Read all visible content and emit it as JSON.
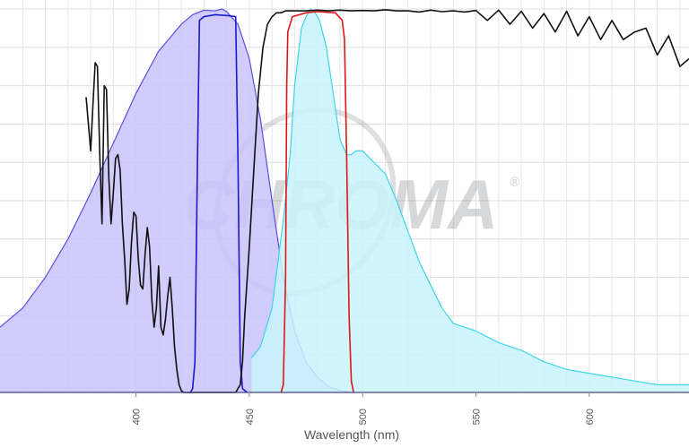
{
  "chart_data": {
    "type": "area",
    "xlabel": "Wavelength (nm)",
    "ylabel": "",
    "xlim": [
      340,
      644
    ],
    "ylim": [
      0,
      100
    ],
    "x_ticks": [
      400,
      450,
      500,
      550,
      600
    ],
    "x_tick_labels": [
      "400",
      "450",
      "500",
      "550",
      "600"
    ],
    "grid": true,
    "watermark": "CHROMA",
    "watermark_mark": "®",
    "series": [
      {
        "kind": "excitation-area",
        "color": "#5a4fe0",
        "fill": "#c9c3fb",
        "x": [
          340,
          350,
          360,
          370,
          380,
          390,
          400,
          410,
          420,
          425,
          430,
          435,
          438,
          440,
          445,
          450,
          455,
          460,
          465,
          470,
          475,
          480,
          485,
          490,
          495
        ],
        "y": [
          17,
          22,
          30,
          40,
          52,
          65,
          78,
          89,
          96,
          98.5,
          99.7,
          99.5,
          100,
          99.3,
          96,
          87,
          71,
          50,
          30,
          16,
          8,
          4,
          1.5,
          0.5,
          0
        ]
      },
      {
        "kind": "emission-area",
        "color": "#3fd4ec",
        "fill": "#c8f3fb",
        "x": [
          451,
          455,
          460,
          465,
          468,
          470,
          473,
          475,
          477,
          479,
          481,
          484,
          487,
          490,
          493,
          495,
          497,
          500,
          505,
          510,
          515,
          520,
          525,
          530,
          535,
          540,
          545,
          550,
          560,
          570,
          580,
          590,
          600,
          610,
          620,
          630,
          644
        ],
        "y": [
          9,
          12,
          22,
          45,
          62,
          80,
          95,
          98,
          100,
          99,
          97,
          90,
          78,
          66,
          62,
          62,
          63,
          63,
          60,
          57,
          50,
          42,
          34,
          28,
          22,
          18,
          17,
          16,
          13,
          11,
          8,
          6,
          5,
          4,
          3,
          2,
          2
        ]
      },
      {
        "kind": "excitation-filter",
        "color": "#1a1acc",
        "x": [
          424,
          425,
          426,
          427,
          428,
          430,
          435,
          440,
          444,
          445,
          446,
          447,
          449
        ],
        "y": [
          0,
          1,
          8,
          55,
          97,
          98,
          98.5,
          98.3,
          98,
          60,
          8,
          1,
          0
        ]
      },
      {
        "kind": "emission-filter",
        "color": "#e01616",
        "x": [
          464,
          465,
          466,
          466.5,
          467,
          469,
          475,
          480,
          488,
          491,
          492,
          493,
          494,
          495,
          496
        ],
        "y": [
          0,
          2,
          30,
          80,
          94,
          98,
          99,
          99.3,
          99,
          97,
          92,
          60,
          20,
          3,
          0
        ]
      },
      {
        "kind": "dichroic",
        "color": "#111111",
        "x": [
          378,
          380,
          381,
          382,
          383,
          384,
          385,
          386,
          387,
          388,
          389,
          390,
          391,
          392,
          393,
          394,
          395,
          396,
          397,
          398,
          399,
          400,
          401,
          402,
          403,
          404,
          405,
          406,
          407,
          408,
          409,
          410,
          411,
          412,
          413,
          414,
          415,
          416,
          417,
          418,
          419,
          420,
          421,
          422,
          423,
          424,
          425,
          426,
          427,
          428,
          429,
          430,
          432,
          434,
          436,
          438,
          440,
          442,
          444,
          446,
          447,
          448,
          450,
          452,
          454,
          456,
          458,
          460,
          462,
          464,
          466,
          470,
          475,
          480,
          485,
          490,
          495,
          500,
          505,
          510,
          515,
          520,
          525,
          530,
          535,
          540,
          545,
          550,
          555,
          560,
          565,
          570,
          575,
          580,
          585,
          590,
          595,
          600,
          605,
          610,
          615,
          620,
          625,
          630,
          635,
          640,
          644
        ],
        "y": [
          77,
          63,
          75,
          86,
          85,
          62,
          44,
          80,
          79,
          56,
          44,
          52,
          61,
          62,
          58,
          44,
          35,
          23,
          27,
          39,
          47,
          46,
          35,
          28,
          27,
          36,
          43,
          38,
          24,
          17,
          22,
          33,
          17,
          15,
          19,
          25,
          30,
          22,
          12,
          6,
          2,
          0.5,
          0,
          0,
          0,
          0,
          0,
          0,
          0,
          0,
          0,
          0,
          0,
          0,
          0,
          0,
          0,
          0,
          0,
          2,
          8,
          20,
          38,
          58,
          78,
          90,
          96,
          98,
          99,
          99,
          99.5,
          99.5,
          99.5,
          99.7,
          99.5,
          99.7,
          99.5,
          99.6,
          99.5,
          99.8,
          99.5,
          99.5,
          99.2,
          99.7,
          99.3,
          99.5,
          99.2,
          99.6,
          97,
          99.7,
          96,
          99.4,
          95,
          98.8,
          94,
          99.4,
          93,
          98,
          92,
          97,
          92,
          94,
          95,
          88,
          93,
          85,
          87
        ]
      }
    ]
  }
}
